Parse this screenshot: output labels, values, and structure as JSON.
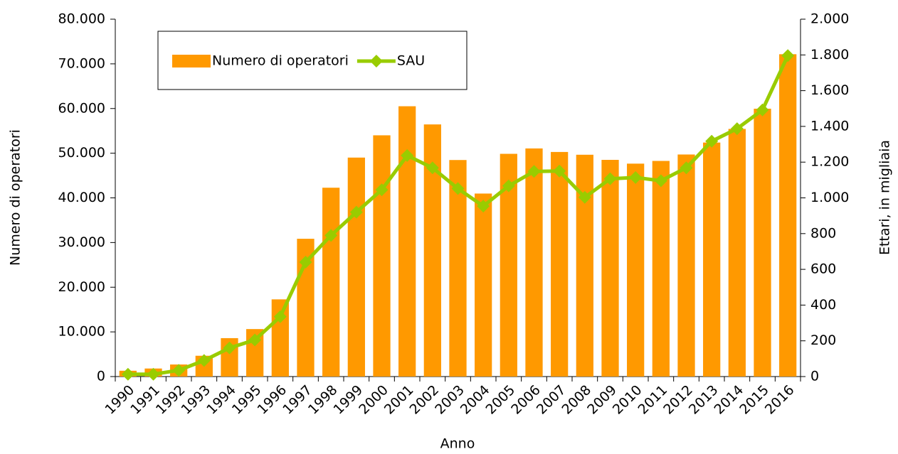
{
  "chart_data": {
    "type": "bar_line",
    "x_label": "Anno",
    "y_label": "Numero di operatori",
    "y2_label": "Ettari, in migliaia",
    "categories": [
      "1990",
      "1991",
      "1992",
      "1993",
      "1994",
      "1995",
      "1996",
      "1997",
      "1998",
      "1999",
      "2000",
      "2001",
      "2002",
      "2003",
      "2004",
      "2005",
      "2006",
      "2007",
      "2008",
      "2009",
      "2010",
      "2011",
      "2012",
      "2013",
      "2014",
      "2015",
      "2016"
    ],
    "series": [
      {
        "name": "Numero di operatori",
        "type": "bar",
        "color": "#ff9900",
        "values": [
          1300,
          1800,
          2700,
          4656,
          8600,
          10630,
          17279,
          30844,
          42273,
          49018,
          54004,
          60509,
          56440,
          48473,
          40965,
          49859,
          51065,
          50276,
          49654,
          48509,
          47663,
          48269,
          49709,
          52383,
          55433,
          59959,
          72154
        ]
      },
      {
        "name": "SAU",
        "type": "line",
        "axis": "y2",
        "color": "#99cc00",
        "values": [
          13,
          13,
          35,
          90,
          160,
          205,
          335,
          640,
          790,
          920,
          1045,
          1237,
          1168,
          1052,
          954,
          1067,
          1148,
          1150,
          1003,
          1107,
          1114,
          1096,
          1168,
          1317,
          1387,
          1492,
          1796
        ]
      }
    ],
    "ylim": [
      0,
      80000
    ],
    "yticks": [
      0,
      {
        "value": 10000,
        "label": "10.000"
      },
      {
        "value": 20000,
        "label": "20.000"
      },
      {
        "value": 30000,
        "label": "30.000"
      },
      {
        "value": 40000,
        "label": "40.000"
      },
      {
        "value": 50000,
        "label": "50.000"
      },
      {
        "value": 60000,
        "label": "60.000"
      },
      {
        "value": 70000,
        "label": "70.000"
      },
      {
        "value": 80000,
        "label": "80.000"
      }
    ],
    "y2lim": [
      0,
      2000
    ],
    "y2ticks": [
      0,
      200,
      400,
      600,
      800,
      {
        "value": 1000,
        "label": "1.000"
      },
      {
        "value": 1200,
        "label": "1.200"
      },
      {
        "value": 1400,
        "label": "1.400"
      },
      {
        "value": 1600,
        "label": "1.600"
      },
      {
        "value": 1800,
        "label": "1.800"
      },
      {
        "value": 2000,
        "label": "2.000"
      }
    ],
    "legend": "top-left"
  }
}
